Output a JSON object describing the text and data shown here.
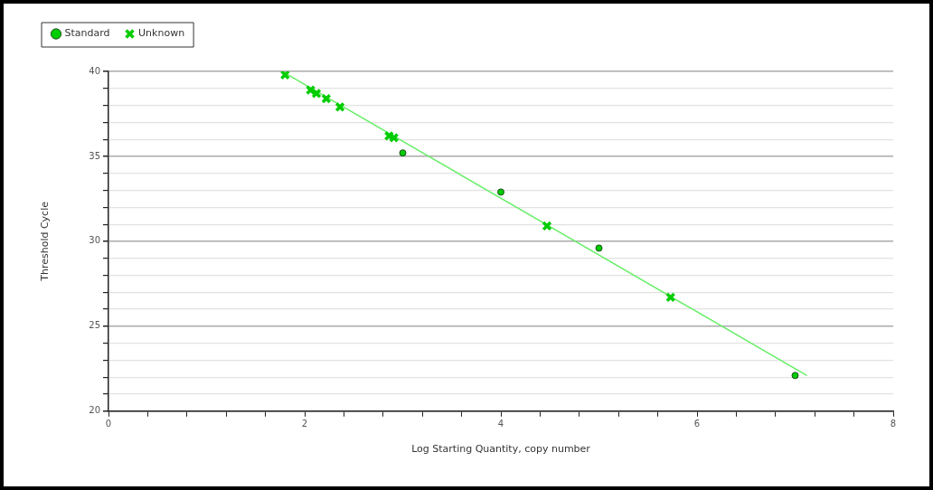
{
  "chart_data": {
    "type": "scatter",
    "xlabel": "Log Starting Quantity, copy number",
    "ylabel": "Threshold Cycle",
    "xlim": [
      0,
      8
    ],
    "xticks": [
      0,
      {
        "value": 0.4,
        "label": null
      },
      {
        "value": 0.8,
        "label": null
      },
      {
        "value": 1.2,
        "label": null
      },
      {
        "value": 1.6,
        "label": null
      },
      2,
      {
        "value": 2.4,
        "label": null
      },
      {
        "value": 2.8,
        "label": null
      },
      {
        "value": 3.2,
        "label": null
      },
      {
        "value": 3.6,
        "label": null
      },
      4,
      {
        "value": 4.4,
        "label": null
      },
      {
        "value": 4.8,
        "label": null
      },
      {
        "value": 5.2,
        "label": null
      },
      {
        "value": 5.6,
        "label": null
      },
      6,
      {
        "value": 6.4,
        "label": null
      },
      {
        "value": 6.8,
        "label": null
      },
      {
        "value": 7.2,
        "label": null
      },
      {
        "value": 7.6,
        "label": null
      },
      8
    ],
    "ylim": [
      20,
      40
    ],
    "yticks": [
      20,
      {
        "value": 21,
        "label": null
      },
      {
        "value": 22,
        "label": null
      },
      {
        "value": 23,
        "label": null
      },
      {
        "value": 24,
        "label": null
      },
      25,
      {
        "value": 26,
        "label": null
      },
      {
        "value": 27,
        "label": null
      },
      {
        "value": 28,
        "label": null
      },
      {
        "value": 29,
        "label": null
      },
      30,
      {
        "value": 31,
        "label": null
      },
      {
        "value": 32,
        "label": null
      },
      {
        "value": 33,
        "label": null
      },
      {
        "value": 34,
        "label": null
      },
      35,
      {
        "value": 36,
        "label": null
      },
      {
        "value": 37,
        "label": null
      },
      {
        "value": 38,
        "label": null
      },
      {
        "value": 39,
        "label": null
      },
      40
    ],
    "grid": "y",
    "legend": "top left",
    "series": [
      {
        "type": "line",
        "color": "#66ee66",
        "marker": "none",
        "line_style": "solid",
        "x": [
          1.8,
          7.12
        ],
        "values": [
          39.9,
          22.1
        ]
      },
      {
        "name": "Standard",
        "type": "scatter",
        "color": "#00cc00",
        "marker": "circle",
        "x": [
          3.0,
          4.0,
          5.0,
          7.0
        ],
        "values": [
          35.2,
          32.9,
          29.6,
          22.1
        ]
      },
      {
        "name": "Unknown",
        "type": "scatter",
        "color": "#00cc00",
        "marker": "cross",
        "x": [
          1.8,
          2.06,
          2.12,
          2.22,
          2.36,
          2.86,
          2.91,
          4.47,
          5.73
        ],
        "values": [
          39.8,
          38.9,
          38.7,
          38.4,
          37.9,
          36.2,
          36.1,
          30.9,
          26.7
        ]
      }
    ]
  }
}
